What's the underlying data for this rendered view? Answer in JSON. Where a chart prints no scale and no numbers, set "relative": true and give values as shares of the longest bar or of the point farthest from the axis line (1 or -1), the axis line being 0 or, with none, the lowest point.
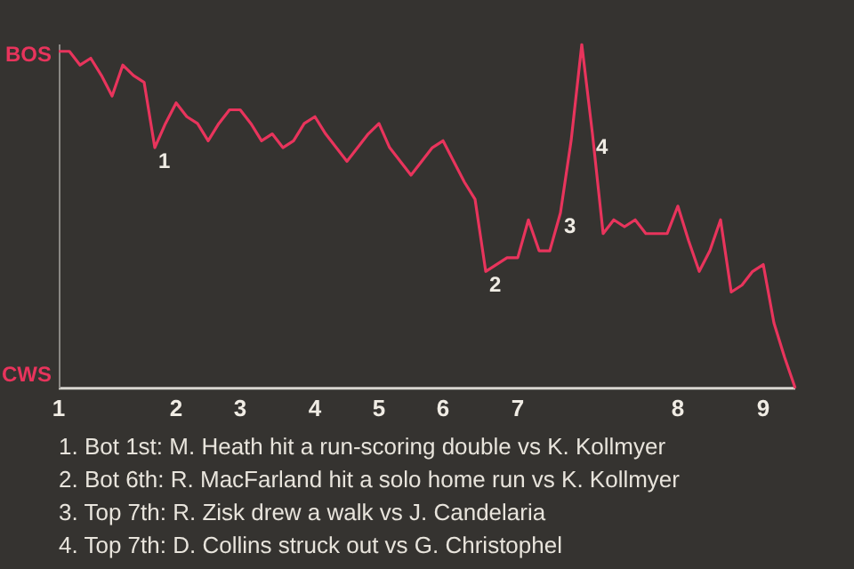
{
  "chart_data": {
    "type": "line",
    "relative": true,
    "categories": [
      "1",
      null,
      null,
      null,
      null,
      null,
      null,
      null,
      null,
      null,
      null,
      "2",
      null,
      null,
      null,
      null,
      null,
      "3",
      null,
      null,
      null,
      null,
      null,
      null,
      "4",
      null,
      null,
      null,
      null,
      null,
      "5",
      null,
      null,
      null,
      null,
      null,
      "6",
      null,
      null,
      null,
      null,
      null,
      null,
      "7",
      null,
      null,
      null,
      null,
      null,
      null,
      null,
      null,
      null,
      null,
      null,
      null,
      null,
      null,
      "8",
      null,
      null,
      null,
      null,
      null,
      null,
      null,
      "9",
      null,
      null,
      null
    ],
    "series": [
      {
        "color": "#e8345c",
        "values": [
          0.98,
          0.98,
          0.94,
          0.96,
          0.91,
          0.85,
          0.94,
          0.91,
          0.89,
          0.7,
          0.77,
          0.83,
          0.79,
          0.77,
          0.72,
          0.77,
          0.81,
          0.81,
          0.77,
          0.72,
          0.74,
          0.7,
          0.72,
          0.77,
          0.79,
          0.74,
          0.7,
          0.66,
          0.7,
          0.74,
          0.77,
          0.7,
          0.66,
          0.62,
          0.66,
          0.7,
          0.72,
          0.66,
          0.6,
          0.55,
          0.34,
          0.36,
          0.38,
          0.38,
          0.49,
          0.4,
          0.4,
          0.51,
          0.72,
          1,
          0.74,
          0.45,
          0.49,
          0.47,
          0.49,
          0.45,
          0.45,
          0.45,
          0.53,
          0.43,
          0.34,
          0.4,
          0.49,
          0.28,
          0.3,
          0.34,
          0.36,
          0.19,
          0.09,
          0
        ]
      }
    ],
    "legend": false,
    "marker": "none",
    "line_style": "solid",
    "annotations": [
      {
        "text": "1",
        "y": 0.7
      },
      {
        "text": "2",
        "y": 0.34
      },
      {
        "text": "3",
        "y": 0.51
      },
      {
        "text": "4",
        "y": 0.74
      },
      "BOS",
      "CWS",
      "1. Bot 1st: M. Heath hit a run-scoring double vs K. Kollmyer",
      "2. Bot 6th: R. MacFarland hit a solo home run vs K. Kollmyer",
      "3. Top 7th: R. Zisk drew a walk vs J. Candelaria",
      "4. Top 7th: D. Collins struck out vs G. Christophel"
    ]
  }
}
